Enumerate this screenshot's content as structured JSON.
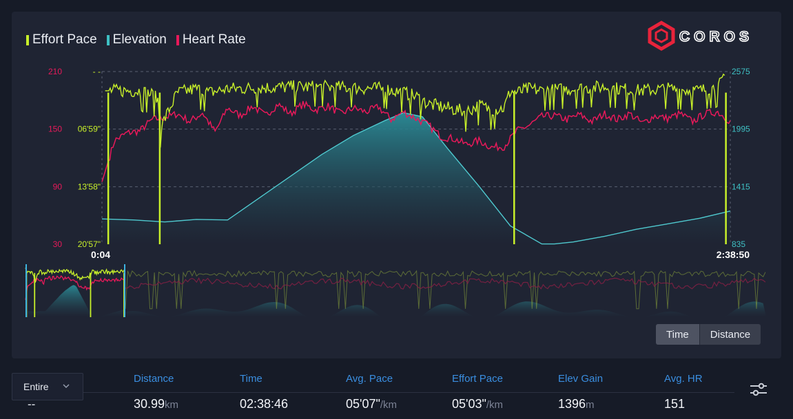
{
  "legend": [
    {
      "name": "Effort Pace",
      "color": "#c8f02a"
    },
    {
      "name": "Elevation",
      "color": "#3ec0c4"
    },
    {
      "name": "Heart Rate",
      "color": "#e8195a"
    }
  ],
  "brand": {
    "name": "COROS",
    "color": "#e8233b"
  },
  "chart_data": {
    "type": "line",
    "x_range_label": [
      "0:04",
      "2:38:50"
    ],
    "axes": {
      "hr": {
        "ticks": [
          "210",
          "150",
          "90",
          "30"
        ],
        "range": [
          30,
          210
        ],
        "color": "#e8195a"
      },
      "pace": {
        "ticks": [
          "- -",
          "06'59\"",
          "13'58\"",
          "20'57\""
        ],
        "color": "#c8f02a"
      },
      "elevation": {
        "ticks": [
          "2575",
          "1995",
          "1415",
          "835"
        ],
        "range": [
          835,
          2575
        ],
        "color": "#3ec0c4"
      }
    },
    "grid": true,
    "series": [
      {
        "name": "Heart Rate",
        "color": "#e8195a",
        "x": [
          0,
          2,
          4,
          6,
          8,
          10,
          12,
          14,
          16,
          18,
          20,
          22,
          24,
          26,
          28,
          30,
          32,
          34,
          36,
          38,
          40,
          42,
          44,
          46,
          48,
          50,
          52,
          54,
          56,
          58,
          60,
          62,
          64,
          66,
          68,
          70,
          72,
          74,
          76,
          78,
          80,
          82,
          84,
          86,
          88,
          90,
          92,
          94,
          96,
          98,
          100
        ],
        "values": [
          95,
          138,
          146,
          148,
          160,
          162,
          166,
          158,
          167,
          147,
          172,
          164,
          174,
          164,
          176,
          166,
          176,
          170,
          174,
          166,
          172,
          168,
          173,
          160,
          168,
          161,
          154,
          142,
          140,
          134,
          138,
          131,
          132,
          148,
          154,
          163,
          164,
          160,
          165,
          158,
          166,
          160,
          166,
          156,
          164,
          161,
          166,
          158,
          166,
          168,
          158
        ]
      },
      {
        "name": "Effort Pace",
        "color": "#c8f02a",
        "x": [
          0,
          0.3,
          1,
          3,
          6,
          8,
          9,
          9.2,
          12,
          15,
          17,
          20,
          25,
          30,
          35,
          40,
          45,
          48,
          50,
          52,
          55,
          58,
          60,
          62,
          64,
          65,
          66,
          68,
          70,
          75,
          80,
          85,
          90,
          95,
          98,
          99.4,
          100
        ],
        "values": [
          205,
          190,
          190,
          190,
          190,
          186,
          180,
          150,
          188,
          192,
          188,
          192,
          193,
          194,
          194,
          193,
          192,
          188,
          184,
          176,
          172,
          168,
          175,
          170,
          172,
          190,
          188,
          192,
          190,
          192,
          194,
          190,
          192,
          190,
          194,
          205,
          205
        ]
      },
      {
        "name": "Elevation",
        "color": "#3ec0c4",
        "x": [
          0,
          5,
          10,
          15,
          20,
          25,
          30,
          35,
          40,
          45,
          48,
          51,
          55,
          60,
          65,
          70,
          72,
          75,
          80,
          85,
          90,
          95,
          100
        ],
        "values": [
          1090,
          1080,
          1060,
          1085,
          1080,
          1300,
          1520,
          1740,
          1930,
          2080,
          2160,
          2120,
          1800,
          1420,
          1020,
          838,
          838,
          858,
          915,
          985,
          1040,
          1095,
          1170
        ]
      }
    ],
    "spikes_pace": [
      1,
      9.2,
      65.6,
      99.3
    ]
  },
  "buttons": {
    "time": "Time",
    "distance": "Distance"
  },
  "range": {
    "label": "Entire",
    "value": "--"
  },
  "stats": [
    {
      "label": "Distance",
      "value": "30.99",
      "unit": "km"
    },
    {
      "label": "Time",
      "value": "02:38:46",
      "unit": ""
    },
    {
      "label": "Avg. Pace",
      "value": "05'07\"",
      "unit": "/km"
    },
    {
      "label": "Effort Pace",
      "value": "05'03\"",
      "unit": "/km"
    },
    {
      "label": "Elev Gain",
      "value": "1396",
      "unit": "m"
    },
    {
      "label": "Avg. HR",
      "value": "151",
      "unit": ""
    }
  ]
}
